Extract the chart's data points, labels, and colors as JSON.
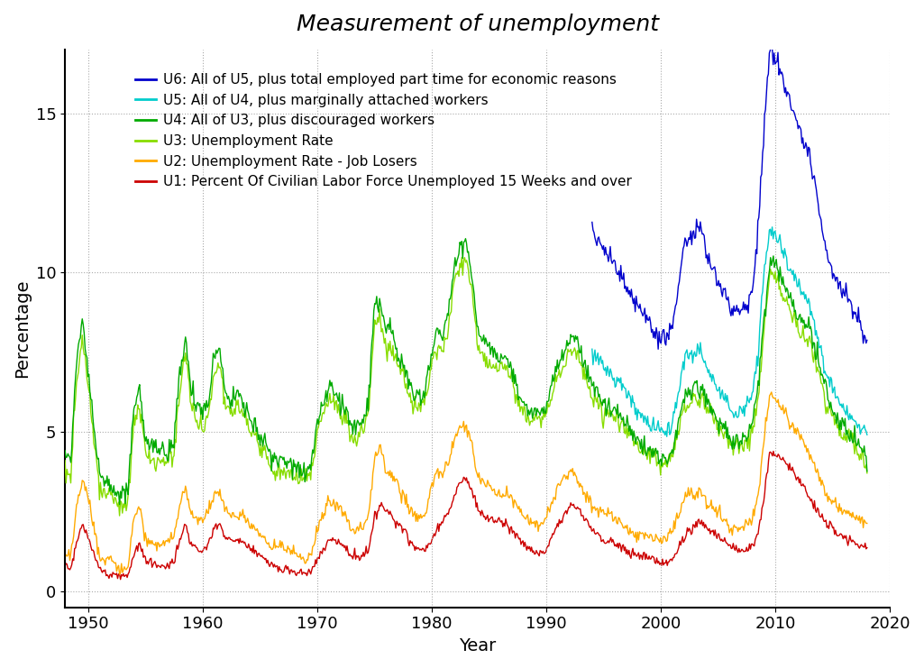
{
  "title": "Measurement of unemployment",
  "xlabel": "Year",
  "ylabel": "Percentage",
  "xlim": [
    1948,
    2020
  ],
  "ylim": [
    -0.5,
    17
  ],
  "yticks": [
    0,
    5,
    10,
    15
  ],
  "xticks": [
    1950,
    1960,
    1970,
    1980,
    1990,
    2000,
    2010,
    2020
  ],
  "series": [
    {
      "label": "U6: All of U5, plus total employed part time for economic reasons",
      "color": "#0000CC",
      "zorder": 6
    },
    {
      "label": "U5: All of U4, plus marginally attached workers",
      "color": "#00CCCC",
      "zorder": 5
    },
    {
      "label": "U4: All of U3, plus discouraged workers",
      "color": "#00AA00",
      "zorder": 4
    },
    {
      "label": "U3: Unemployment Rate",
      "color": "#88DD00",
      "zorder": 3
    },
    {
      "label": "U2: Unemployment Rate - Job Losers",
      "color": "#FFAA00",
      "zorder": 2
    },
    {
      "label": "U1: Percent Of Civilian Labor Force Unemployed 15 Weeks and over",
      "color": "#CC0000",
      "zorder": 1
    }
  ],
  "background_color": "#ffffff",
  "grid_color": "#aaaaaa",
  "title_fontsize": 18,
  "label_fontsize": 14,
  "tick_fontsize": 13,
  "legend_fontsize": 11,
  "linewidth": 1.0
}
